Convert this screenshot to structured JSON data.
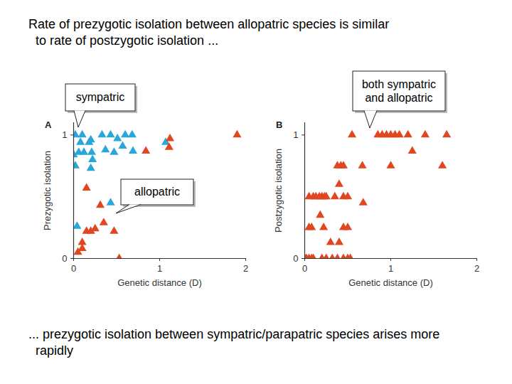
{
  "title": [
    "Rate of prezygotic isolation between allopatric species is similar",
    "to rate of postzygotic isolation ..."
  ],
  "caption": [
    "... prezygotic isolation between sympatric/parapatric species arises more",
    "rapidly"
  ],
  "chart_data": [
    {
      "type": "scatter",
      "title": "A",
      "x_label": "Genetic distance (D)",
      "y_label": "Prezygotic isolation",
      "xlim": [
        0,
        2
      ],
      "ylim": [
        0,
        1.1
      ],
      "xticks": [
        0,
        1,
        2
      ],
      "yticks": [
        0,
        1
      ],
      "marker": "triangle",
      "series": [
        {
          "name": "sympatric",
          "color": "#2aa7d9",
          "x": [
            0.02,
            0.1,
            0.2,
            0.33,
            0.43,
            0.51,
            0.6,
            0.68,
            0.08,
            0.18,
            0.06,
            0.12,
            0.21,
            0.37,
            0.47,
            0.57,
            0.69,
            0.0,
            0.02,
            0.2,
            0.22,
            1.07,
            0.04,
            0.43
          ],
          "y": [
            1.0,
            1.0,
            0.96,
            1.0,
            1.0,
            0.97,
            1.0,
            1.0,
            0.94,
            0.94,
            0.86,
            0.86,
            0.86,
            0.88,
            0.86,
            0.91,
            0.87,
            0.84,
            0.75,
            0.73,
            0.8,
            0.94,
            0.26,
            0.45
          ]
        },
        {
          "name": "allopatric",
          "color": "#e0461f",
          "x": [
            0.84,
            1.12,
            1.11,
            1.9,
            0.15,
            0.15,
            0.2,
            0.25,
            0.35,
            0.47,
            0.31,
            0.1,
            0.05,
            0.1,
            0.53
          ],
          "y": [
            0.87,
            0.97,
            0.9,
            1.0,
            0.57,
            0.22,
            0.22,
            0.24,
            0.29,
            0.22,
            0.43,
            0.13,
            0.05,
            0.08,
            0.0
          ]
        }
      ]
    },
    {
      "type": "scatter",
      "title": "B",
      "x_label": "Genetic distance (D)",
      "y_label": "Postzygotic isolation",
      "xlim": [
        0,
        2
      ],
      "ylim": [
        0,
        1.1
      ],
      "xticks": [
        0,
        1,
        2
      ],
      "yticks": [
        0,
        1
      ],
      "marker": "triangle",
      "annotations": [
        {
          "text": [
            "both sympatric",
            "and allopatric"
          ]
        }
      ],
      "series": [
        {
          "color": "#e0461f",
          "x": [
            0.0,
            0.02,
            0.05,
            0.08,
            0.1,
            0.2,
            0.25,
            0.32,
            0.38,
            0.45,
            0.5,
            0.53,
            0.05,
            0.08,
            0.22,
            0.45,
            0.5,
            0.05,
            0.1,
            0.13,
            0.17,
            0.2,
            0.23,
            0.25,
            0.35,
            0.45,
            0.5,
            0.38,
            0.42,
            0.45,
            0.67,
            1.0,
            1.6,
            0.55,
            0.85,
            0.9,
            0.95,
            1.0,
            1.05,
            1.1,
            1.2,
            1.4,
            1.65,
            0.4,
            0.68,
            0.18,
            0.3,
            0.4,
            1.25
          ],
          "y": [
            0,
            0,
            0,
            0,
            0,
            0,
            0,
            0,
            0,
            0,
            0,
            0,
            0.25,
            0.25,
            0.25,
            0.25,
            0.25,
            0.5,
            0.5,
            0.5,
            0.5,
            0.5,
            0.5,
            0.5,
            0.5,
            0.5,
            0.5,
            0.75,
            0.75,
            0.75,
            0.75,
            0.75,
            0.75,
            1.0,
            1.0,
            1.0,
            1.0,
            1.0,
            1.0,
            1.0,
            1.0,
            1.0,
            1.0,
            0.6,
            0.45,
            0.35,
            0.13,
            0.13,
            0.87
          ]
        }
      ]
    }
  ]
}
